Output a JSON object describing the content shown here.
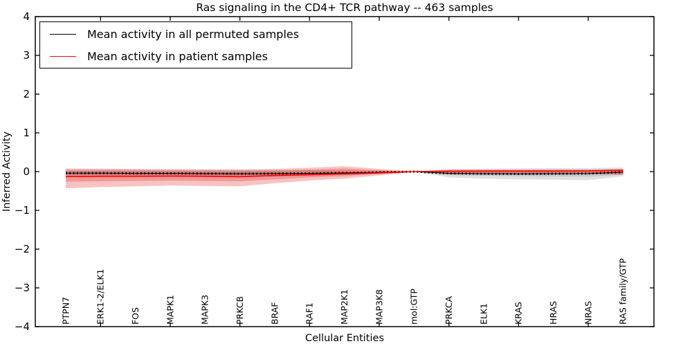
{
  "window": {
    "kind": "matplotlib-figure"
  },
  "chart_data": {
    "type": "line",
    "title": "Ras signaling in the CD4+ TCR pathway -- 463 samples",
    "xlabel": "Cellular Entities",
    "ylabel": "Inferred Activity",
    "ylim": [
      -4,
      4
    ],
    "yticks": [
      -4,
      -3,
      -2,
      -1,
      0,
      1,
      2,
      3,
      4
    ],
    "x_major_tick_indices": [
      1,
      3,
      5,
      7,
      9,
      11,
      13,
      15
    ],
    "grid": false,
    "legend_position": "upper left",
    "categories": [
      "PTPN7",
      "ERK1-2/ELK1",
      "FOS",
      "MAPK1",
      "MAPK3",
      "PRKCB",
      "BRAF",
      "RAF1",
      "MAP2K1",
      "MAP3K8",
      "mol:GTP",
      "PRKCA",
      "ELK1",
      "KRAS",
      "HRAS",
      "NRAS",
      "RAS family/GTP"
    ],
    "series": [
      {
        "name": "Mean activity in all permuted samples",
        "color": "#000000",
        "marker": "tick-dashes",
        "values": [
          -0.04,
          -0.04,
          -0.045,
          -0.045,
          -0.05,
          -0.055,
          -0.05,
          -0.045,
          -0.035,
          -0.02,
          0,
          -0.045,
          -0.055,
          -0.06,
          -0.055,
          -0.05,
          -0.015
        ]
      },
      {
        "name": "Mean activity in patient samples",
        "color": "#ff0000",
        "marker": "none",
        "values": [
          -0.13,
          -0.12,
          -0.12,
          -0.115,
          -0.12,
          -0.13,
          -0.1,
          -0.08,
          -0.06,
          -0.035,
          0,
          0.01,
          0.015,
          0.015,
          0.015,
          0.02,
          0.03
        ]
      }
    ],
    "bands": [
      {
        "name": "permuted-band-outer",
        "color": "#000000",
        "opacity": 0.12,
        "upper": [
          0.06,
          0.06,
          0.055,
          0.05,
          0.05,
          0.05,
          0.05,
          0.05,
          0.04,
          0.025,
          0.005,
          0.065,
          0.075,
          0.085,
          0.09,
          0.09,
          0.11
        ],
        "lower": [
          -0.14,
          -0.14,
          -0.135,
          -0.13,
          -0.14,
          -0.15,
          -0.13,
          -0.12,
          -0.09,
          -0.05,
          -0.005,
          -0.15,
          -0.18,
          -0.2,
          -0.21,
          -0.22,
          -0.12
        ]
      },
      {
        "name": "permuted-band-inner",
        "color": "#000000",
        "opacity": 0.1,
        "upper": [
          0.03,
          0.03,
          0.028,
          0.025,
          0.025,
          0.025,
          0.025,
          0.025,
          0.02,
          0.012,
          0.002,
          0.04,
          0.045,
          0.05,
          0.055,
          0.055,
          0.07
        ],
        "lower": [
          -0.09,
          -0.09,
          -0.085,
          -0.08,
          -0.09,
          -0.095,
          -0.08,
          -0.075,
          -0.055,
          -0.03,
          -0.002,
          -0.09,
          -0.11,
          -0.12,
          -0.13,
          -0.135,
          -0.08
        ]
      },
      {
        "name": "patient-band-outer",
        "color": "#e53935",
        "opacity": 0.3,
        "upper": [
          0.08,
          0.075,
          0.07,
          0.065,
          0.06,
          0.055,
          0.07,
          0.1,
          0.14,
          0.07,
          0.005,
          0.05,
          0.05,
          0.05,
          0.05,
          0.05,
          0.07
        ],
        "lower": [
          -0.43,
          -0.4,
          -0.38,
          -0.36,
          -0.37,
          -0.38,
          -0.3,
          -0.23,
          -0.18,
          -0.1,
          -0.005,
          -0.07,
          -0.06,
          -0.06,
          -0.06,
          -0.06,
          -0.09
        ]
      },
      {
        "name": "patient-band-inner",
        "color": "#e53935",
        "opacity": 0.3,
        "upper": [
          0.02,
          0.02,
          0.018,
          0.015,
          0.012,
          0.01,
          0.02,
          0.05,
          0.08,
          0.035,
          0.002,
          0.03,
          0.03,
          0.03,
          0.03,
          0.03,
          0.05
        ],
        "lower": [
          -0.26,
          -0.25,
          -0.24,
          -0.23,
          -0.24,
          -0.25,
          -0.2,
          -0.15,
          -0.12,
          -0.06,
          -0.002,
          -0.04,
          -0.04,
          -0.04,
          -0.04,
          -0.04,
          -0.06
        ]
      }
    ]
  }
}
